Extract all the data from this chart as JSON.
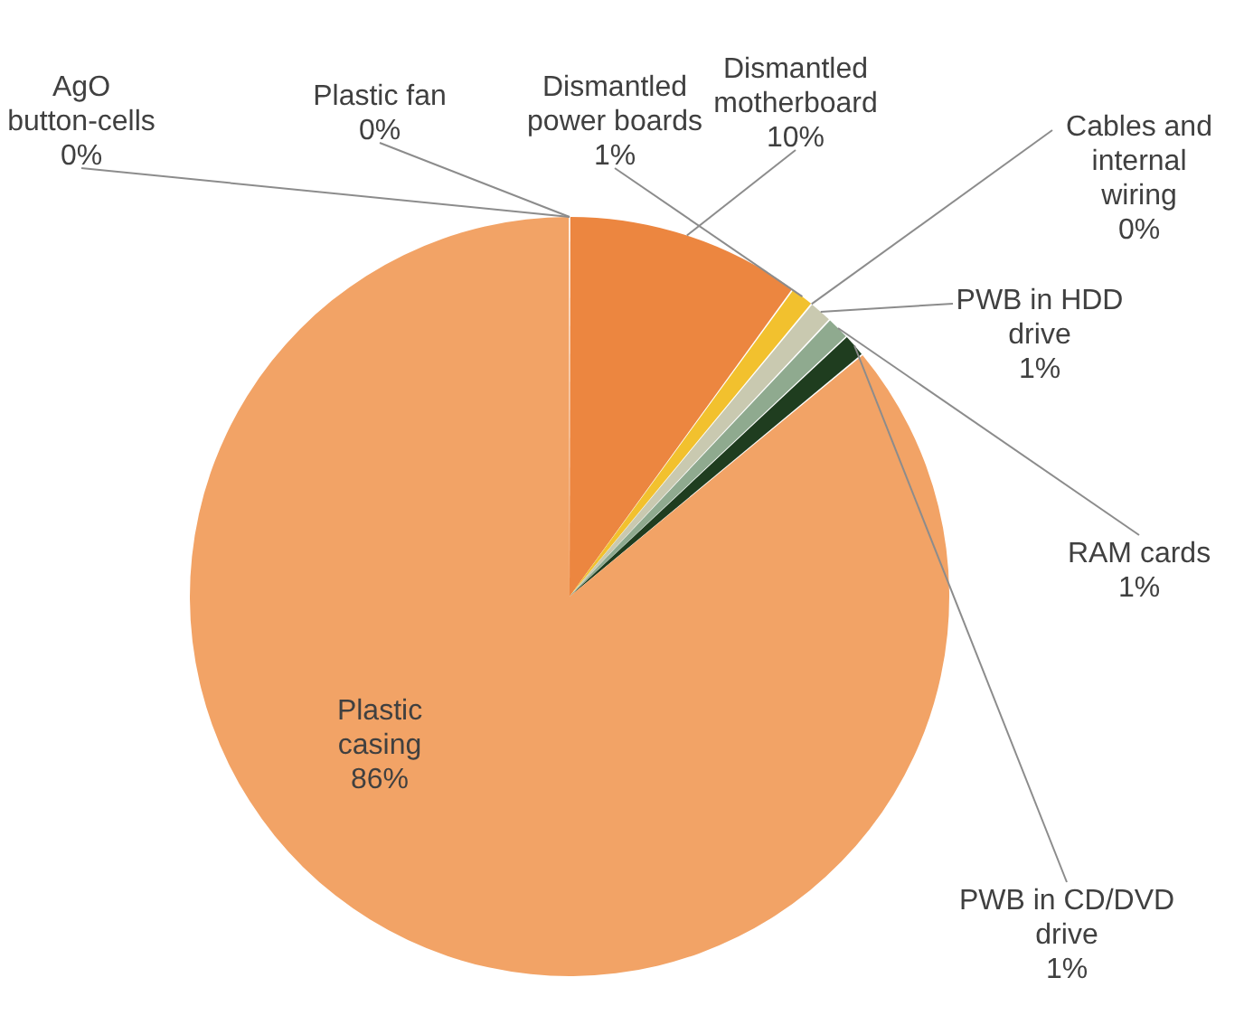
{
  "chart_data": {
    "type": "pie",
    "categories": [
      "Dismantled motherboard",
      "Dismantled power boards",
      "Cables and internal wiring",
      "PWB in HDD drive",
      "RAM cards",
      "PWB in CD/DVD drive",
      "Plastic casing",
      "AgO button-cells",
      "Plastic fan"
    ],
    "values": [
      10,
      1,
      0,
      1,
      1,
      1,
      86,
      0,
      0
    ],
    "colors": [
      "#ec8640",
      "#f2c12e",
      "#a5a5a5",
      "#c9c9b0",
      "#8faa8f",
      "#1f3d1f",
      "#f2a366",
      "#5b9bd5",
      "#70ad47"
    ],
    "value_labels": [
      "10%",
      "1%",
      "0%",
      "1%",
      "1%",
      "1%",
      "86%",
      "0%",
      "0%"
    ]
  }
}
